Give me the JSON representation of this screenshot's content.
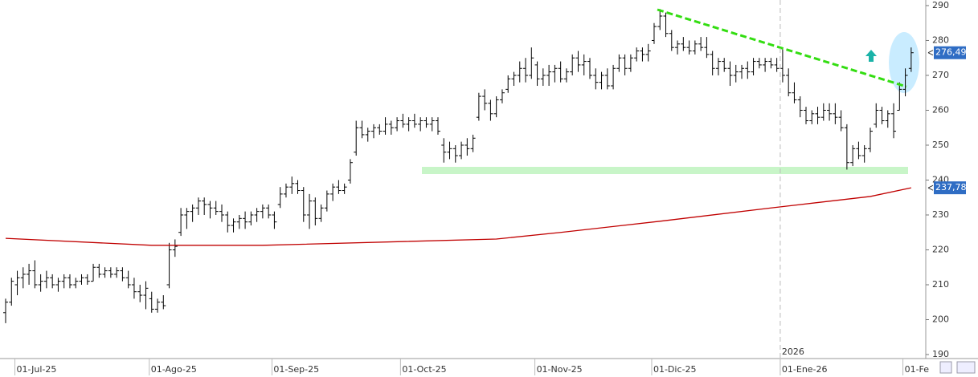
{
  "chart_data": {
    "type": "ohlc",
    "color": "#000000",
    "categories": [
      null,
      null,
      "01-Jul-25",
      null,
      null,
      null,
      null,
      null,
      null,
      null,
      null,
      null,
      null,
      null,
      null,
      null,
      null,
      null,
      null,
      null,
      null,
      null,
      null,
      null,
      null,
      "01-Ago-25",
      null,
      null,
      null,
      null,
      null,
      null,
      null,
      null,
      null,
      null,
      null,
      null,
      null,
      null,
      null,
      null,
      null,
      null,
      null,
      null,
      "01-Sep-25",
      null,
      null,
      null,
      null,
      null,
      null,
      null,
      null,
      null,
      null,
      null,
      null,
      null,
      null,
      null,
      null,
      null,
      null,
      null,
      null,
      null,
      "01-Oct-25",
      null,
      null,
      null,
      null,
      null,
      null,
      null,
      null,
      null,
      null,
      null,
      null,
      null,
      null,
      null,
      null,
      null,
      null,
      null,
      null,
      null,
      null,
      "01-Nov-25",
      null,
      null,
      null,
      null,
      null,
      null,
      null,
      null,
      null,
      null,
      null,
      null,
      null,
      null,
      null,
      null,
      null,
      null,
      null,
      "01-Dic-25",
      null,
      null,
      null,
      null,
      null,
      null,
      null,
      null,
      null,
      null,
      null,
      null,
      null,
      null,
      null,
      null,
      null,
      null,
      null,
      null,
      null,
      "01-Ene-26",
      null,
      null,
      null,
      null,
      null,
      null,
      null,
      null,
      null,
      null,
      null,
      null,
      null,
      null,
      null,
      null,
      null,
      null,
      null,
      null,
      "01-Fe",
      null
    ],
    "ohlc": [
      [
        202,
        206,
        199,
        205
      ],
      [
        205,
        212,
        204,
        211
      ],
      [
        210,
        214,
        207,
        212
      ],
      [
        212,
        215,
        209,
        213
      ],
      [
        213,
        216,
        210,
        214
      ],
      [
        214,
        217,
        209,
        210
      ],
      [
        210,
        213,
        208,
        211
      ],
      [
        211,
        214,
        209,
        212
      ],
      [
        212,
        213,
        209,
        210
      ],
      [
        210,
        212,
        208,
        211
      ],
      [
        211,
        213,
        209,
        212
      ],
      [
        212,
        213,
        209,
        210
      ],
      [
        210,
        212,
        209,
        211
      ],
      [
        211,
        213,
        210,
        212
      ],
      [
        212,
        213,
        210,
        211
      ],
      [
        211,
        216,
        211,
        215
      ],
      [
        215,
        216,
        212,
        213
      ],
      [
        213,
        215,
        212,
        214
      ],
      [
        214,
        215,
        212,
        213
      ],
      [
        213,
        215,
        212,
        214
      ],
      [
        214,
        215,
        211,
        212
      ],
      [
        212,
        214,
        209,
        210
      ],
      [
        210,
        212,
        206,
        208
      ],
      [
        208,
        210,
        205,
        207
      ],
      [
        207,
        211,
        203,
        209
      ],
      [
        206,
        208,
        202,
        203
      ],
      [
        203,
        206,
        202,
        205
      ],
      [
        205,
        207,
        203,
        204
      ],
      [
        210,
        222,
        209,
        220
      ],
      [
        220,
        223,
        218,
        221
      ],
      [
        225,
        232,
        224,
        230
      ],
      [
        230,
        232,
        226,
        231
      ],
      [
        231,
        233,
        228,
        232
      ],
      [
        232,
        235,
        230,
        234
      ],
      [
        234,
        235,
        230,
        233
      ],
      [
        233,
        234,
        229,
        232
      ],
      [
        232,
        234,
        230,
        231
      ],
      [
        231,
        233,
        228,
        230
      ],
      [
        230,
        231,
        225,
        227
      ],
      [
        227,
        229,
        225,
        228
      ],
      [
        228,
        230,
        226,
        229
      ],
      [
        229,
        231,
        226,
        228
      ],
      [
        228,
        231,
        227,
        230
      ],
      [
        230,
        232,
        228,
        231
      ],
      [
        231,
        233,
        229,
        232
      ],
      [
        232,
        233,
        229,
        230
      ],
      [
        230,
        231,
        226,
        228
      ],
      [
        233,
        238,
        232,
        236
      ],
      [
        236,
        239,
        235,
        238
      ],
      [
        238,
        241,
        236,
        239
      ],
      [
        239,
        240,
        236,
        237
      ],
      [
        237,
        238,
        228,
        230
      ],
      [
        230,
        236,
        226,
        234
      ],
      [
        234,
        235,
        227,
        229
      ],
      [
        229,
        233,
        228,
        232
      ],
      [
        232,
        237,
        231,
        236
      ],
      [
        236,
        239,
        234,
        238
      ],
      [
        238,
        240,
        236,
        237
      ],
      [
        237,
        239,
        236,
        238
      ],
      [
        240,
        246,
        239,
        245
      ],
      [
        248,
        257,
        247,
        255
      ],
      [
        255,
        257,
        252,
        253
      ],
      [
        253,
        255,
        251,
        254
      ],
      [
        254,
        256,
        252,
        255
      ],
      [
        255,
        256,
        253,
        254
      ],
      [
        254,
        258,
        253,
        256
      ],
      [
        256,
        257,
        253,
        255
      ],
      [
        255,
        258,
        254,
        257
      ],
      [
        257,
        259,
        255,
        256
      ],
      [
        256,
        258,
        254,
        257
      ],
      [
        257,
        259,
        255,
        256
      ],
      [
        256,
        258,
        254,
        257
      ],
      [
        257,
        258,
        255,
        256
      ],
      [
        256,
        258,
        254,
        257
      ],
      [
        257,
        258,
        253,
        254
      ],
      [
        250,
        252,
        245,
        248
      ],
      [
        248,
        251,
        246,
        249
      ],
      [
        249,
        250,
        245,
        247
      ],
      [
        247,
        251,
        246,
        250
      ],
      [
        250,
        252,
        247,
        249
      ],
      [
        249,
        253,
        248,
        252
      ],
      [
        258,
        265,
        257,
        264
      ],
      [
        264,
        266,
        260,
        262
      ],
      [
        262,
        263,
        257,
        259
      ],
      [
        259,
        264,
        258,
        263
      ],
      [
        263,
        266,
        262,
        265
      ],
      [
        266,
        270,
        265,
        269
      ],
      [
        269,
        271,
        267,
        270
      ],
      [
        270,
        274,
        268,
        272
      ],
      [
        272,
        275,
        268,
        270
      ],
      [
        270,
        278,
        269,
        275
      ],
      [
        273,
        274,
        267,
        269
      ],
      [
        269,
        272,
        267,
        270
      ],
      [
        270,
        273,
        267,
        271
      ],
      [
        271,
        273,
        268,
        272
      ],
      [
        272,
        274,
        268,
        269
      ],
      [
        269,
        272,
        268,
        271
      ],
      [
        271,
        276,
        270,
        275
      ],
      [
        275,
        277,
        271,
        273
      ],
      [
        273,
        276,
        270,
        274
      ],
      [
        274,
        275,
        269,
        270
      ],
      [
        270,
        272,
        266,
        268
      ],
      [
        268,
        271,
        266,
        270
      ],
      [
        270,
        272,
        266,
        267
      ],
      [
        267,
        273,
        266,
        272
      ],
      [
        272,
        276,
        271,
        275
      ],
      [
        275,
        276,
        270,
        272
      ],
      [
        272,
        276,
        271,
        275
      ],
      [
        275,
        278,
        274,
        277
      ],
      [
        277,
        278,
        274,
        276
      ],
      [
        276,
        279,
        274,
        277
      ],
      [
        280,
        285,
        279,
        284
      ],
      [
        284,
        289,
        283,
        287
      ],
      [
        287,
        288,
        281,
        282
      ],
      [
        282,
        283,
        277,
        278
      ],
      [
        278,
        280,
        276,
        279
      ],
      [
        279,
        281,
        277,
        278
      ],
      [
        278,
        280,
        276,
        277
      ],
      [
        277,
        280,
        276,
        279
      ],
      [
        279,
        281,
        277,
        278
      ],
      [
        278,
        281,
        275,
        276
      ],
      [
        276,
        277,
        270,
        272
      ],
      [
        272,
        275,
        270,
        274
      ],
      [
        274,
        275,
        271,
        272
      ],
      [
        272,
        274,
        267,
        270
      ],
      [
        270,
        273,
        268,
        271
      ],
      [
        271,
        273,
        269,
        272
      ],
      [
        272,
        274,
        269,
        271
      ],
      [
        271,
        275,
        270,
        274
      ],
      [
        274,
        275,
        272,
        273
      ],
      [
        273,
        275,
        271,
        274
      ],
      [
        274,
        275,
        272,
        273
      ],
      [
        273,
        275,
        271,
        272
      ],
      [
        272,
        278,
        268,
        270
      ],
      [
        270,
        272,
        264,
        265
      ],
      [
        265,
        268,
        262,
        263
      ],
      [
        263,
        264,
        258,
        260
      ],
      [
        260,
        261,
        256,
        257
      ],
      [
        257,
        260,
        256,
        259
      ],
      [
        259,
        261,
        256,
        258
      ],
      [
        258,
        262,
        257,
        260
      ],
      [
        260,
        262,
        257,
        259
      ],
      [
        259,
        262,
        256,
        258
      ],
      [
        258,
        260,
        254,
        255
      ],
      [
        255,
        256,
        243,
        245
      ],
      [
        245,
        250,
        244,
        249
      ],
      [
        249,
        251,
        246,
        247
      ],
      [
        247,
        250,
        245,
        249
      ],
      [
        249,
        255,
        248,
        254
      ],
      [
        256,
        262,
        255,
        260
      ],
      [
        260,
        261,
        256,
        257
      ],
      [
        257,
        260,
        255,
        259
      ],
      [
        259,
        262,
        252,
        254
      ],
      [
        260,
        268,
        260,
        266
      ],
      [
        266,
        272,
        264,
        270
      ],
      [
        272,
        278,
        271,
        276.49
      ]
    ],
    "last_value": 276.49,
    "last_value_label": "276,49",
    "ma": {
      "color": "#c00000",
      "x": [
        0,
        25,
        44,
        84,
        95,
        112,
        131,
        148,
        155
      ],
      "values": [
        223.3,
        221.3,
        221.3,
        223.1,
        225,
        228.2,
        232,
        235.3,
        237.78
      ],
      "last_label": "237,78"
    },
    "year_marker": {
      "x": 133,
      "label": "2026"
    },
    "ylim": [
      188.85,
      291.6
    ],
    "yticks": [
      190,
      200,
      210,
      220,
      230,
      240,
      250,
      260,
      270,
      280,
      290
    ]
  }
}
